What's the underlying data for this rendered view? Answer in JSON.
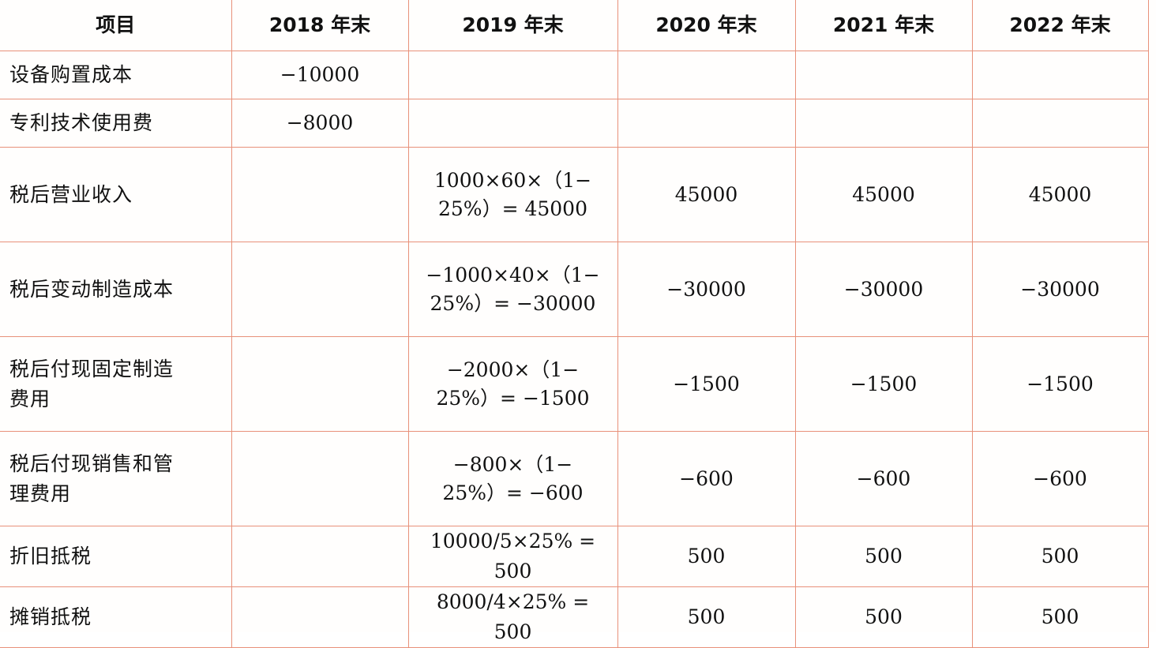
{
  "table": {
    "headers": [
      "项目",
      "2018 年末",
      "2019 年末",
      "2020 年末",
      "2021 年末",
      "2022 年末"
    ],
    "rows": [
      {
        "label": "设备购置成本",
        "c2018": "−10000",
        "c2019": "",
        "c2020": "",
        "c2021": "",
        "c2022": ""
      },
      {
        "label": "专利技术使用费",
        "c2018": "−8000",
        "c2019": "",
        "c2020": "",
        "c2021": "",
        "c2022": ""
      },
      {
        "label": "税后营业收入",
        "c2018": "",
        "c2019_line1": "1000×60×（1−",
        "c2019_line2": "25%）= 45000",
        "c2020": "45000",
        "c2021": "45000",
        "c2022": "45000"
      },
      {
        "label": "税后变动制造成本",
        "c2018": "",
        "c2019_line1": "−1000×40×（1−",
        "c2019_line2": "25%）= −30000",
        "c2020": "−30000",
        "c2021": "−30000",
        "c2022": "−30000"
      },
      {
        "label_line1": "税后付现固定制造",
        "label_line2": "费用",
        "c2018": "",
        "c2019_line1": "−2000×（1−",
        "c2019_line2": "25%）= −1500",
        "c2020": "−1500",
        "c2021": "−1500",
        "c2022": "−1500"
      },
      {
        "label_line1": "税后付现销售和管",
        "label_line2": "理费用",
        "c2018": "",
        "c2019_line1": "−800×（1−",
        "c2019_line2": "25%）= −600",
        "c2020": "−600",
        "c2021": "−600",
        "c2022": "−600"
      },
      {
        "label": "折旧抵税",
        "c2018": "",
        "c2019": "10000/5×25% = 500",
        "c2020": "500",
        "c2021": "500",
        "c2022": "500"
      },
      {
        "label": "摊销抵税",
        "c2018": "",
        "c2019": "8000/4×25% = 500",
        "c2020": "500",
        "c2021": "500",
        "c2022": "500"
      }
    ]
  },
  "colors": {
    "grid_line": "#e8917a",
    "text": "#111111",
    "background": "#fffefd"
  }
}
